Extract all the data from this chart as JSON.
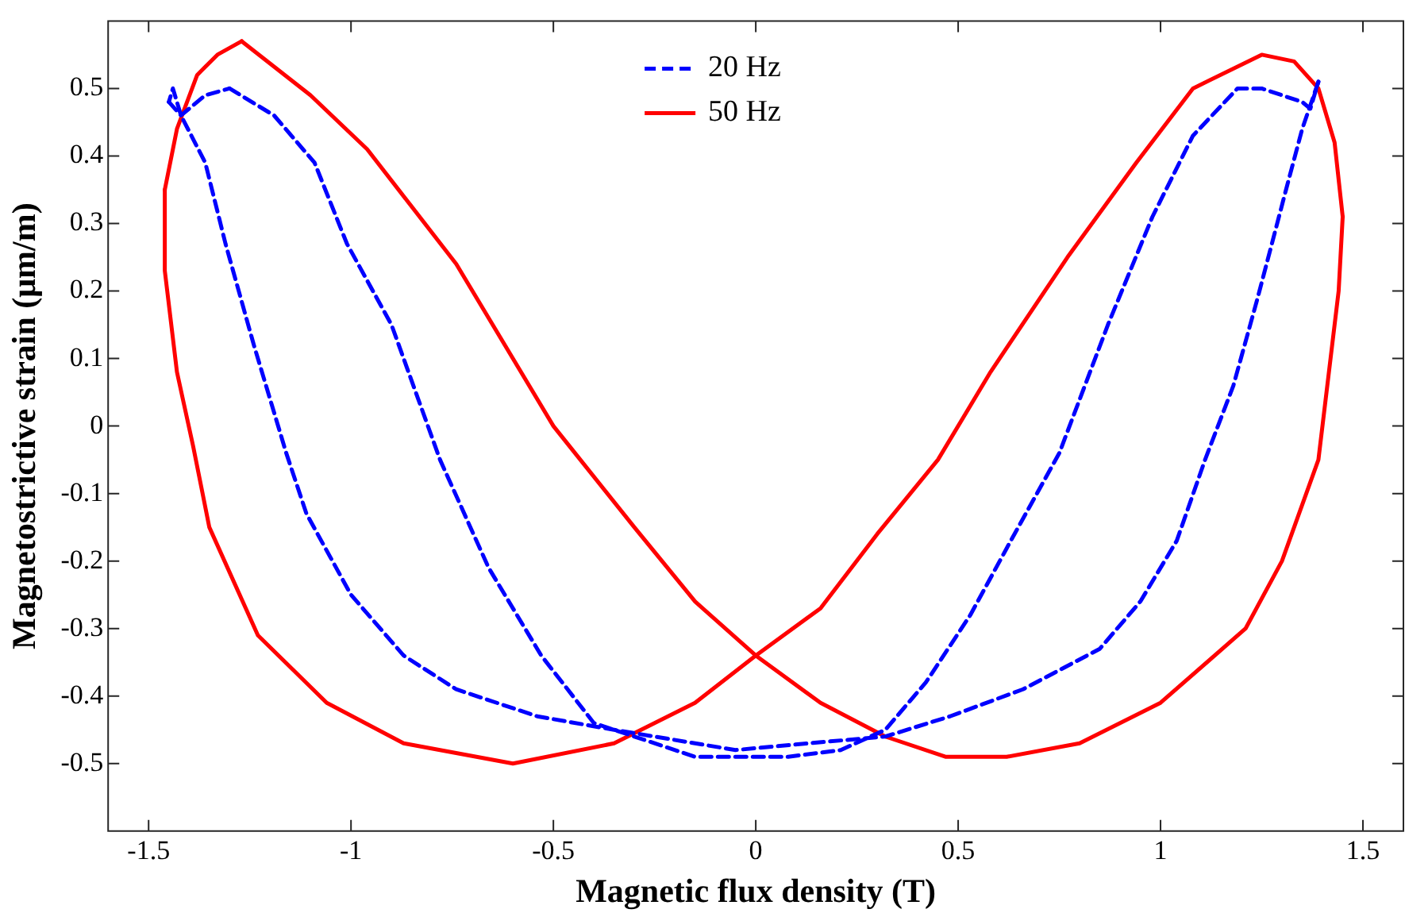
{
  "chart_data": {
    "type": "line",
    "xlabel": "Magnetic flux density (T)",
    "ylabel": "Magnetostrictive strain (μm/m)",
    "xlim": [
      -1.6,
      1.6
    ],
    "xticks": [
      -1.5,
      -1,
      -0.5,
      0,
      0.5,
      1,
      1.5
    ],
    "ylim": [
      -0.6,
      0.6
    ],
    "yticks": [
      -0.5,
      -0.4,
      -0.3,
      -0.2,
      -0.1,
      0,
      0.1,
      0.2,
      0.3,
      0.4,
      0.5
    ],
    "grid": false,
    "legend": "top",
    "marker": "none",
    "series": [
      {
        "name": "20 Hz",
        "color": "#0000ff",
        "line_style": "dashed",
        "x": [
          -1.3,
          -1.19,
          -1.09,
          -1.01,
          -0.9,
          -0.78,
          -0.66,
          -0.53,
          -0.4,
          -0.15,
          0.08,
          0.21,
          0.32,
          0.42,
          0.53,
          0.63,
          0.75,
          0.87,
          0.98,
          1.08,
          1.19,
          1.25,
          1.35,
          1.37,
          1.39,
          1.35,
          1.31,
          1.24,
          1.18,
          1.11,
          1.04,
          0.95,
          0.85,
          0.66,
          0.48,
          0.32,
          0.13,
          -0.05,
          -0.15,
          -0.35,
          -0.54,
          -0.74,
          -0.87,
          -1.0,
          -1.11,
          -1.16,
          -1.24,
          -1.31,
          -1.36,
          -1.42,
          -1.44,
          -1.45,
          -1.42,
          -1.36,
          -1.3
        ],
        "values": [
          0.5,
          0.46,
          0.39,
          0.27,
          0.15,
          -0.05,
          -0.21,
          -0.34,
          -0.44,
          -0.49,
          -0.49,
          -0.48,
          -0.45,
          -0.38,
          -0.28,
          -0.17,
          -0.04,
          0.15,
          0.31,
          0.43,
          0.5,
          0.5,
          0.48,
          0.47,
          0.51,
          0.44,
          0.35,
          0.19,
          0.06,
          -0.05,
          -0.17,
          -0.26,
          -0.33,
          -0.39,
          -0.43,
          -0.46,
          -0.47,
          -0.48,
          -0.47,
          -0.45,
          -0.43,
          -0.39,
          -0.34,
          -0.25,
          -0.13,
          -0.04,
          0.12,
          0.27,
          0.39,
          0.46,
          0.5,
          0.48,
          0.46,
          0.49,
          0.5
        ]
      },
      {
        "name": "50 Hz",
        "color": "#ff0000",
        "line_style": "solid",
        "x": [
          -1.27,
          -1.1,
          -0.96,
          -0.74,
          -0.5,
          -0.46,
          -0.3,
          -0.15,
          0,
          0.16,
          0.32,
          0.47,
          0.62,
          0.8,
          1.0,
          1.21,
          1.3,
          1.39,
          1.44,
          1.45,
          1.43,
          1.39,
          1.33,
          1.25,
          1.08,
          0.94,
          0.77,
          0.58,
          0.45,
          0.3,
          0.16,
          0,
          -0.15,
          -0.35,
          -0.6,
          -0.87,
          -1.06,
          -1.23,
          -1.35,
          -1.39,
          -1.43,
          -1.46,
          -1.46,
          -1.43,
          -1.38,
          -1.33,
          -1.27
        ],
        "values": [
          0.57,
          0.49,
          0.41,
          0.24,
          0.0,
          -0.03,
          -0.15,
          -0.26,
          -0.34,
          -0.41,
          -0.46,
          -0.49,
          -0.49,
          -0.47,
          -0.41,
          -0.3,
          -0.2,
          -0.05,
          0.2,
          0.31,
          0.42,
          0.5,
          0.54,
          0.55,
          0.5,
          0.39,
          0.25,
          0.08,
          -0.05,
          -0.16,
          -0.27,
          -0.34,
          -0.41,
          -0.47,
          -0.5,
          -0.47,
          -0.41,
          -0.31,
          -0.15,
          -0.03,
          0.08,
          0.23,
          0.35,
          0.44,
          0.52,
          0.55,
          0.57
        ]
      }
    ]
  }
}
